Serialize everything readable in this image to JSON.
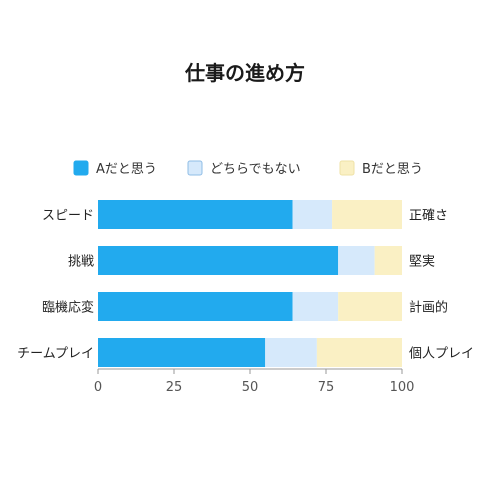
{
  "chart_data": {
    "type": "bar",
    "orientation": "horizontal",
    "stacked": true,
    "title": "仕事の進め方",
    "categories": [
      "スピード",
      "挑戦",
      "臨機応変",
      "チームプレイ"
    ],
    "right_labels": [
      "正確さ",
      "堅実",
      "計画的",
      "個人プレイ"
    ],
    "series": [
      {
        "name": "Aだと思う",
        "color": "#22aaee",
        "values": [
          64,
          79,
          64,
          55
        ]
      },
      {
        "name": "どちらでもない",
        "color": "#d6e9fb",
        "values": [
          13,
          12,
          15,
          17
        ]
      },
      {
        "name": "Bだと思う",
        "color": "#faf0c4",
        "values": [
          23,
          9,
          21,
          28
        ]
      }
    ],
    "xlim": [
      0,
      100
    ],
    "xticks": [
      0,
      25,
      50,
      75,
      100
    ],
    "legend_position": "top",
    "grid": false
  }
}
